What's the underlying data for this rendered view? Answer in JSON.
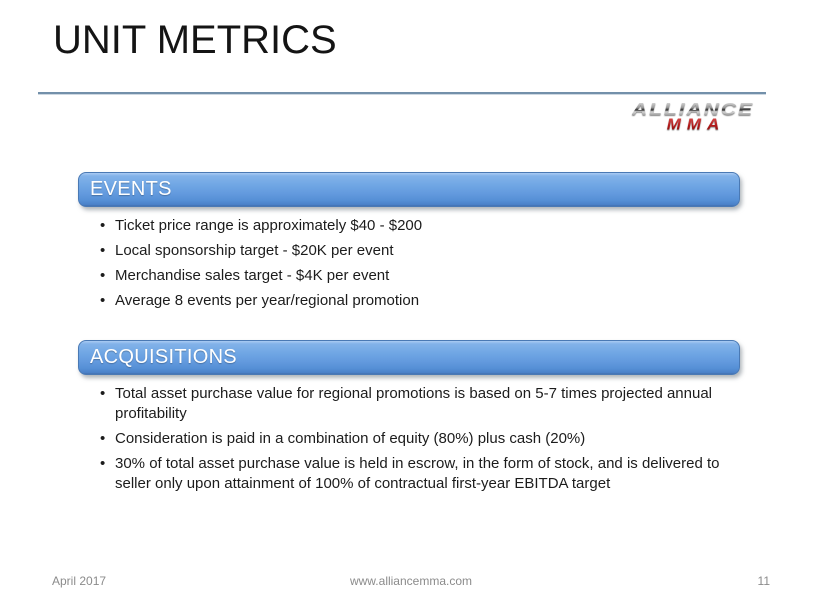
{
  "title": "UNIT METRICS",
  "logo": {
    "line1": "ALLIANCE",
    "line2": "MMA"
  },
  "sections": [
    {
      "header": "EVENTS",
      "bullets": [
        "Ticket price range is approximately $40 - $200",
        "Local sponsorship target - $20K per event",
        "Merchandise sales target - $4K per event",
        "Average 8 events per year/regional promotion"
      ]
    },
    {
      "header": "ACQUISITIONS",
      "bullets": [
        "Total asset purchase value for regional promotions is based on 5-7 times projected annual profitability",
        "Consideration is paid in a combination of equity (80%) plus cash (20%)",
        "30% of total asset purchase value is held in escrow, in the form of stock, and is delivered to seller only upon attainment of 100% of contractual first-year EBITDA target"
      ]
    }
  ],
  "footer": {
    "date": "April 2017",
    "website": "www.alliancemma.com",
    "page_number": "11"
  },
  "colors": {
    "banner_blue_top": "#82b2e9",
    "banner_blue_bottom": "#4a81c8",
    "divider_blue": "#7390aa",
    "logo_red": "#b01818",
    "footer_gray": "#8b8b8b",
    "text_dark": "#1c1c1c"
  }
}
